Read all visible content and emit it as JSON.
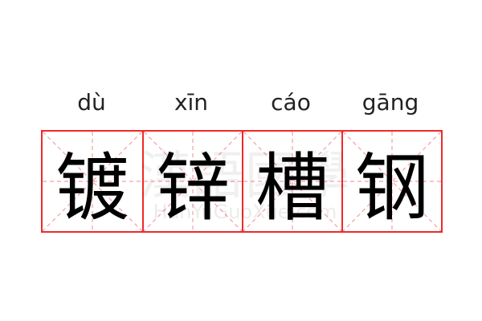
{
  "word": [
    {
      "pinyin": "dù",
      "char": "镀"
    },
    {
      "pinyin": "xīn",
      "char": "锌"
    },
    {
      "pinyin": "cáo",
      "char": "槽"
    },
    {
      "pinyin": "gāng",
      "char": "钢"
    }
  ],
  "watermark": {
    "chinese": "漢語國學",
    "latin": "HanYuGuoXue.com"
  },
  "colors": {
    "grid_border": "#ee2a2a",
    "guide_lines": "#f5a0a0",
    "text": "#000000"
  }
}
